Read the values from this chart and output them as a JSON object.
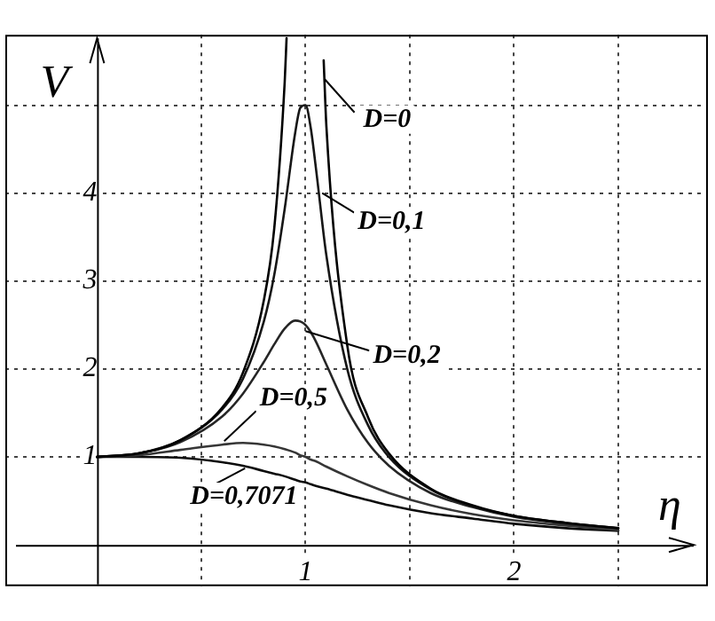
{
  "chart_data": {
    "type": "line",
    "xlabel": "η",
    "ylabel": "V",
    "x": [
      0,
      0.2,
      0.4,
      0.6,
      0.7,
      0.8,
      0.85,
      0.9,
      0.95,
      0.975,
      1,
      1.025,
      1.05,
      1.1,
      1.2,
      1.3,
      1.4,
      1.6,
      1.8,
      2,
      2.25,
      2.5
    ],
    "series": [
      {
        "color": "#000000",
        "x": [
          0,
          0.2,
          0.4,
          0.6,
          0.7,
          0.8,
          0.85,
          0.9,
          0.909,
          1,
          1.087,
          1.1,
          1.2,
          1.3,
          1.4,
          1.6,
          1.8,
          2,
          2.25,
          2.5
        ],
        "values": [
          1,
          1.04,
          1.19,
          1.56,
          1.96,
          2.78,
          3.6,
          5.26,
          5.76,
          null,
          5.51,
          4.76,
          2.27,
          1.45,
          1.04,
          0.64,
          0.45,
          0.33,
          0.25,
          0.19
        ]
      },
      {
        "color": "#161616",
        "values": [
          1,
          1.04,
          1.19,
          1.54,
          1.89,
          2.54,
          3.07,
          3.82,
          4.68,
          4.97,
          5,
          4.74,
          4.28,
          3.29,
          2,
          1.36,
          1,
          0.63,
          0.44,
          0.33,
          0.25,
          0.19
        ]
      },
      {
        "color": "#262626",
        "values": [
          1,
          1.04,
          1.17,
          1.46,
          1.72,
          2.08,
          2.28,
          2.46,
          2.55,
          2.54,
          2.5,
          2.42,
          2.31,
          2.05,
          1.54,
          1.16,
          0.9,
          0.59,
          0.43,
          0.32,
          0.24,
          0.19
        ]
      },
      {
        "color": "#363636",
        "values": [
          1,
          1.02,
          1.08,
          1.14,
          1.16,
          1.14,
          1.12,
          1.09,
          1.05,
          1.02,
          1,
          0.97,
          0.95,
          0.89,
          0.78,
          0.68,
          0.59,
          0.45,
          0.35,
          0.28,
          0.22,
          0.17
        ]
      },
      {
        "color": "#0c0c0c",
        "values": [
          1,
          1,
          0.99,
          0.94,
          0.9,
          0.84,
          0.81,
          0.78,
          0.74,
          0.72,
          0.71,
          0.69,
          0.67,
          0.64,
          0.57,
          0.51,
          0.45,
          0.36,
          0.3,
          0.24,
          0.19,
          0.16
        ]
      }
    ],
    "annotations": [
      {
        "text": "D=0",
        "x": 1.09,
        "y": 5.3
      },
      {
        "text": "D=0,1",
        "x": 1.08,
        "y": 4.0
      },
      {
        "text": "D=0,2",
        "x": 1.0,
        "y": 2.43
      },
      {
        "text": "D=0,5",
        "x": 0.61,
        "y": 1.18
      },
      {
        "text": "D=0,7071",
        "x": 0.71,
        "y": 0.87
      }
    ],
    "xlim": [
      -0.44,
      2.93
    ],
    "ylim": [
      -0.47,
      5.8
    ],
    "xticks": [
      {
        "value": 0.5,
        "label": null
      },
      1,
      {
        "value": 1.5,
        "label": null
      },
      2,
      {
        "value": 2.5,
        "label": null
      }
    ],
    "yticks": [
      1,
      2,
      3,
      4,
      {
        "value": 5,
        "label": null
      }
    ],
    "grid": true,
    "legend": false,
    "marker": "none",
    "line_style": "solid"
  }
}
